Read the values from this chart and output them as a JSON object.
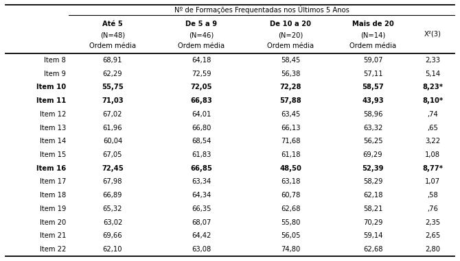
{
  "title_main": "Nº de Formações Frequentadas nos Últimos 5 Anos",
  "col_groups": [
    "Até 5",
    "De 5 a 9",
    "De 10 a 20",
    "Mais de 20"
  ],
  "col_n": [
    "(N=48)",
    "(N=46)",
    "(N=20)",
    "(N=14)"
  ],
  "col_sub": [
    "Ordem média",
    "Ordem média",
    "Ordem média",
    "Ordem média"
  ],
  "col_last": "X²(3)",
  "rows": [
    {
      "item": "Item 8",
      "vals": [
        "68,91",
        "64,18",
        "58,45",
        "59,07"
      ],
      "chi": "2,33",
      "bold": false
    },
    {
      "item": "Item 9",
      "vals": [
        "62,29",
        "72,59",
        "56,38",
        "57,11"
      ],
      "chi": "5,14",
      "bold": false
    },
    {
      "item": "Item 10",
      "vals": [
        "55,75",
        "72,05",
        "72,28",
        "58,57"
      ],
      "chi": "8,23*",
      "bold": true
    },
    {
      "item": "Item 11",
      "vals": [
        "71,03",
        "66,83",
        "57,88",
        "43,93"
      ],
      "chi": "8,10*",
      "bold": true
    },
    {
      "item": "Item 12",
      "vals": [
        "67,02",
        "64,01",
        "63,45",
        "58,96"
      ],
      "chi": ",74",
      "bold": false
    },
    {
      "item": "Item 13",
      "vals": [
        "61,96",
        "66,80",
        "66,13",
        "63,32"
      ],
      "chi": ",65",
      "bold": false
    },
    {
      "item": "Item 14",
      "vals": [
        "60,04",
        "68,54",
        "71,68",
        "56,25"
      ],
      "chi": "3,22",
      "bold": false
    },
    {
      "item": "Item 15",
      "vals": [
        "67,05",
        "61,83",
        "61,18",
        "69,29"
      ],
      "chi": "1,08",
      "bold": false
    },
    {
      "item": "Item 16",
      "vals": [
        "72,45",
        "66,85",
        "48,50",
        "52,39"
      ],
      "chi": "8,77*",
      "bold": true
    },
    {
      "item": "Item 17",
      "vals": [
        "67,98",
        "63,34",
        "63,18",
        "58,29"
      ],
      "chi": "1,07",
      "bold": false
    },
    {
      "item": "Item 18",
      "vals": [
        "66,89",
        "64,34",
        "60,78",
        "62,18"
      ],
      "chi": ",58",
      "bold": false
    },
    {
      "item": "Item 19",
      "vals": [
        "65,32",
        "66,35",
        "62,68",
        "58,21"
      ],
      "chi": ",76",
      "bold": false
    },
    {
      "item": "Item 20",
      "vals": [
        "63,02",
        "68,07",
        "55,80",
        "70,29"
      ],
      "chi": "2,35",
      "bold": false
    },
    {
      "item": "Item 21",
      "vals": [
        "69,66",
        "64,42",
        "56,05",
        "59,14"
      ],
      "chi": "2,65",
      "bold": false
    },
    {
      "item": "Item 22",
      "vals": [
        "62,10",
        "63,08",
        "74,80",
        "62,68"
      ],
      "chi": "2,80",
      "bold": false
    }
  ],
  "bg_color": "#ffffff",
  "font_size": 7.2,
  "header_font_size": 7.2
}
